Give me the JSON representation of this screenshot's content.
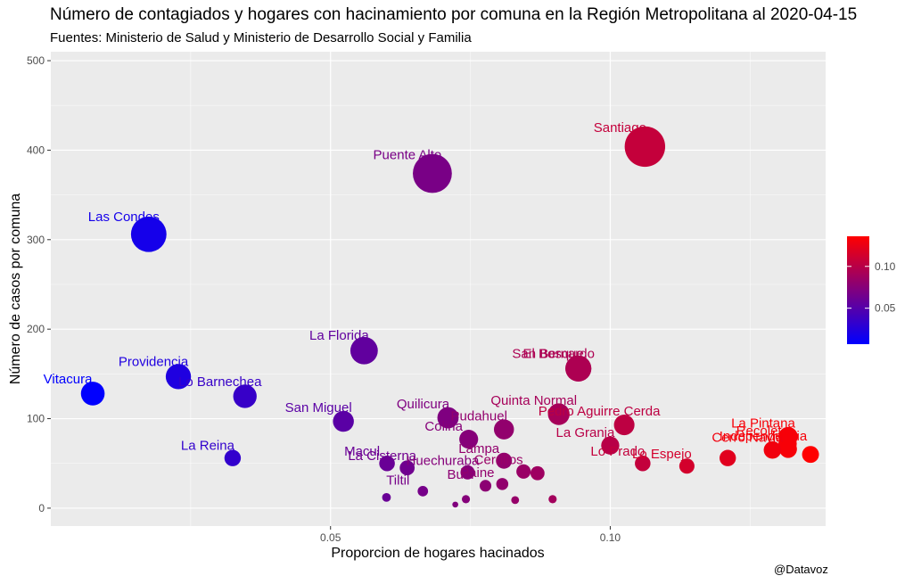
{
  "chart_data": {
    "type": "scatter",
    "title": "Número de contagiados y hogares con hacinamiento por comuna en la Región Metropolitana al 2020-04-15",
    "subtitle": "Fuentes: Ministerio de Salud y Ministerio de Desarrollo Social y Familia",
    "xlabel": "Proporcion de hogares hacinados",
    "ylabel": "Número de casos por comuna",
    "caption": "@Datavoz",
    "xlim": [
      0.0,
      0.1385
    ],
    "ylim": [
      -20,
      510
    ],
    "x_ticks": [
      0.05,
      0.1
    ],
    "x_tick_labels": [
      "0.05",
      "0.10"
    ],
    "y_ticks": [
      0,
      100,
      200,
      300,
      400,
      500
    ],
    "y_tick_labels": [
      "0",
      "100",
      "200",
      "300",
      "400",
      "500"
    ],
    "grid": true,
    "legend": {
      "position": "right",
      "type": "colorbar",
      "min": 0.007,
      "max": 0.136,
      "ticks": [
        0.05,
        0.1
      ],
      "tick_labels": [
        "0.05",
        "0.10"
      ],
      "low_color": "#0000FF",
      "high_color": "#FF0000"
    },
    "points": [
      {
        "label": "Vitacura",
        "x": 0.0075,
        "y": 128
      },
      {
        "label": "Las Condes",
        "x": 0.0175,
        "y": 306
      },
      {
        "label": "Providencia",
        "x": 0.0228,
        "y": 147
      },
      {
        "label": "Lo Barnechea",
        "x": 0.0347,
        "y": 125
      },
      {
        "label": "La Reina",
        "x": 0.0325,
        "y": 56
      },
      {
        "label": "San Miguel",
        "x": 0.0523,
        "y": 97
      },
      {
        "label": "La Florida",
        "x": 0.056,
        "y": 176
      },
      {
        "label": "Puente Alto",
        "x": 0.0682,
        "y": 374
      },
      {
        "label": "Quilicura",
        "x": 0.071,
        "y": 101
      },
      {
        "label": "Pudahuel",
        "x": 0.081,
        "y": 88
      },
      {
        "label": "Colina",
        "x": 0.0747,
        "y": 77
      },
      {
        "label": "Quinta Normal",
        "x": 0.0908,
        "y": 105
      },
      {
        "label": "Pedro Aguirre Cerda",
        "x": 0.1025,
        "y": 93
      },
      {
        "label": "El Bosque",
        "x": 0.0943,
        "y": 156
      },
      {
        "label": "San Bernardo",
        "x": 0.0943,
        "y": 156
      },
      {
        "label": "Santiago",
        "x": 0.1062,
        "y": 404
      },
      {
        "label": "Macul",
        "x": 0.0601,
        "y": 50
      },
      {
        "label": "La Cisterna",
        "x": 0.0637,
        "y": 45
      },
      {
        "label": "Huechuraba",
        "x": 0.0745,
        "y": 40
      },
      {
        "label": "Buin",
        "x": 0.0777,
        "y": 25
      },
      {
        "label": "Lampa",
        "x": 0.081,
        "y": 53
      },
      {
        "label": "Cerrillos",
        "x": 0.0845,
        "y": 41
      },
      {
        "label": "Tiltil",
        "x": 0.0665,
        "y": 19
      },
      {
        "label": "Paine",
        "x": 0.0807,
        "y": 27
      },
      {
        "label": "La Granja",
        "x": 0.1,
        "y": 70
      },
      {
        "label": "Lo Prado",
        "x": 0.1058,
        "y": 50
      },
      {
        "label": "Lo Espejo",
        "x": 0.1137,
        "y": 47
      },
      {
        "label": "Cerro Navia",
        "x": 0.129,
        "y": 65
      },
      {
        "label": "La Pintana",
        "x": 0.1318,
        "y": 80
      },
      {
        "label": "Recoleta",
        "x": 0.1317,
        "y": 72
      },
      {
        "label": "Independencia",
        "x": 0.1318,
        "y": 66
      },
      {
        "label": "",
        "x": 0.121,
        "y": 56
      },
      {
        "label": "",
        "x": 0.1358,
        "y": 60
      },
      {
        "label": "",
        "x": 0.087,
        "y": 39
      },
      {
        "label": "",
        "x": 0.083,
        "y": 9
      },
      {
        "label": "",
        "x": 0.06,
        "y": 12
      },
      {
        "label": "",
        "x": 0.0742,
        "y": 10
      },
      {
        "label": "",
        "x": 0.0723,
        "y": 4
      },
      {
        "label": "",
        "x": 0.0897,
        "y": 10
      }
    ]
  }
}
